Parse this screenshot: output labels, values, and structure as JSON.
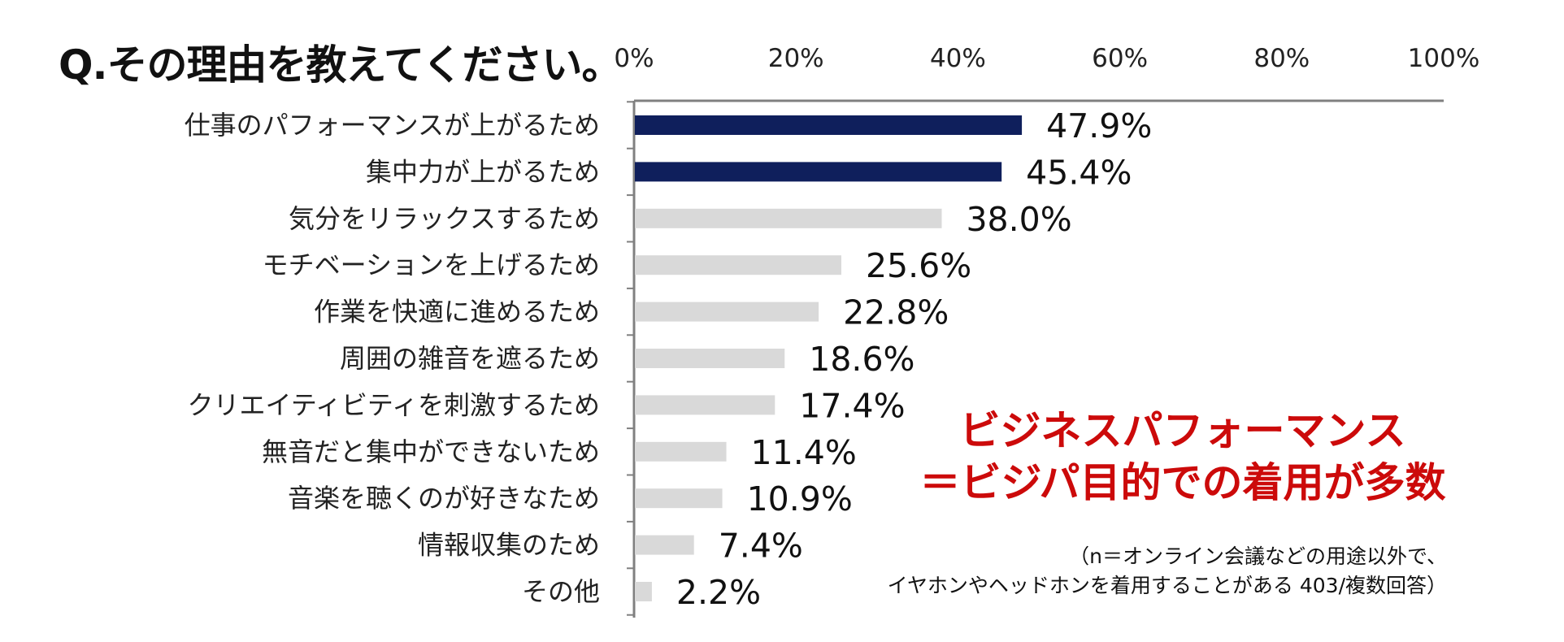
{
  "question": "Q.その理由を教えてください。",
  "colors": {
    "highlight": "#0f1f5c",
    "default": "#d9d9d9",
    "callout": "#cc0a0a",
    "axis": "#808080"
  },
  "chart_data": {
    "type": "bar",
    "orientation": "horizontal",
    "title": "Q.その理由を教えてください。",
    "categories": [
      "仕事のパフォーマンスが上がるため",
      "集中力が上がるため",
      "気分をリラックスするため",
      "モチベーションを上げるため",
      "作業を快適に進めるため",
      "周囲の雑音を遮るため",
      "クリエイティビティを刺激するため",
      "無音だと集中ができないため",
      "音楽を聴くのが好きなため",
      "情報収集のため",
      "その他"
    ],
    "values": [
      47.9,
      45.4,
      38.0,
      25.6,
      22.8,
      18.6,
      17.4,
      11.4,
      10.9,
      7.4,
      2.2
    ],
    "value_labels": [
      "47.9%",
      "45.4%",
      "38.0%",
      "25.6%",
      "22.8%",
      "18.6%",
      "17.4%",
      "11.4%",
      "10.9%",
      "7.4%",
      "2.2%"
    ],
    "highlighted": [
      true,
      true,
      false,
      false,
      false,
      false,
      false,
      false,
      false,
      false,
      false
    ],
    "xlim": [
      0,
      100
    ],
    "xticks": [
      0,
      20,
      40,
      60,
      80,
      100
    ],
    "xtick_labels": [
      "0%",
      "20%",
      "40%",
      "60%",
      "80%",
      "100%"
    ],
    "xaxis_position": "top",
    "grid": false
  },
  "callout": {
    "line1": "ビジネスパフォーマンス",
    "line2": "＝ビジパ目的での着用が多数"
  },
  "note": {
    "line1": "（n＝オンライン会議などの用途以外で、",
    "line2": "イヤホンやヘッドホンを着用することがある 403/複数回答）"
  }
}
